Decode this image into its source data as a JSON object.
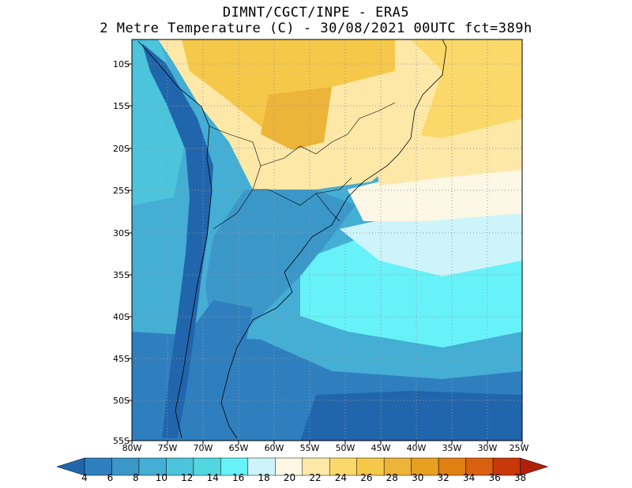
{
  "title_line1": "DIMNT/CGCT/INPE -  ERA5",
  "title_line2": "2 Metre Temperature (C) -  30/08/2021 00UTC fct=389h",
  "lat_labels": [
    "10S",
    "15S",
    "20S",
    "25S",
    "30S",
    "35S",
    "40S",
    "45S",
    "50S",
    "55S"
  ],
  "lon_labels": [
    "80W",
    "75W",
    "70W",
    "65W",
    "60W",
    "55W",
    "50W",
    "45W",
    "40W",
    "35W",
    "30W",
    "25W"
  ],
  "colorbar": {
    "labels": [
      "4",
      "6",
      "8",
      "10",
      "12",
      "14",
      "16",
      "18",
      "20",
      "22",
      "24",
      "26",
      "28",
      "30",
      "32",
      "34",
      "36",
      "38"
    ],
    "colors": [
      "#2166ac",
      "#2f7fbf",
      "#3c97c9",
      "#44aed4",
      "#4cc4dc",
      "#52d6e0",
      "#66f2f8",
      "#cdf4fa",
      "#fdf7e6",
      "#fde8a8",
      "#fbd86a",
      "#f5c84a",
      "#edb43a",
      "#e8a020",
      "#e08010",
      "#d86010",
      "#c83808",
      "#b02008"
    ]
  },
  "map": {
    "lat_range": [
      -55,
      -7
    ],
    "lon_range": [
      -80,
      -25
    ]
  }
}
